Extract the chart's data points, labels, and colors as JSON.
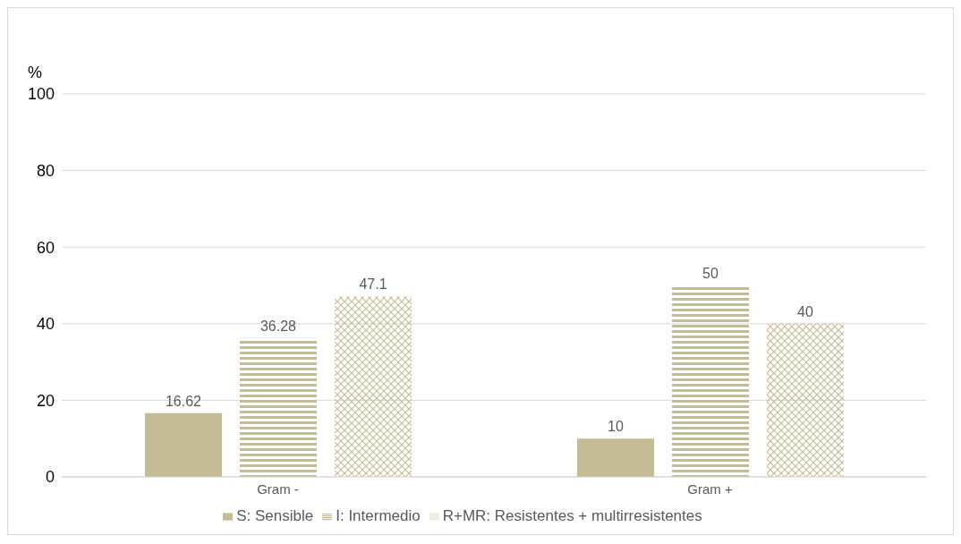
{
  "chart_data": {
    "type": "bar",
    "ylabel": "%",
    "categories": [
      "Gram -",
      "Gram +"
    ],
    "series": [
      {
        "name": "S: Sensible",
        "color": "#c4bc96",
        "values": [
          16.62,
          10
        ]
      },
      {
        "name": "I: Intermedio",
        "color": "#c4bc96",
        "values": [
          36.28,
          50
        ]
      },
      {
        "name": "R+MR: Resistentes + multirresistentes",
        "color": "#c4bc96",
        "values": [
          47.1,
          40
        ]
      }
    ],
    "ylim": [
      0,
      100
    ],
    "yticks": [
      0,
      20,
      40,
      60,
      80,
      100
    ],
    "grid": "y",
    "legend": "bottom",
    "data_labels": true
  }
}
